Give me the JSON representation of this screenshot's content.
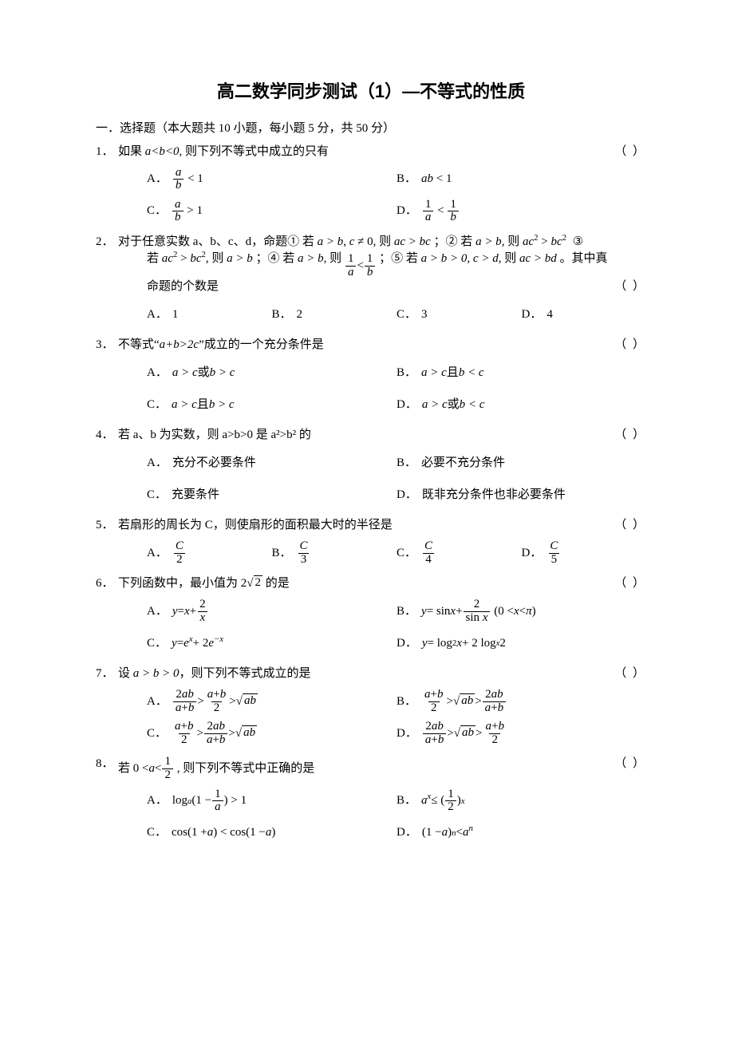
{
  "title": "高二数学同步测试（1）—不等式的性质",
  "section1": "一．选择题（本大题共 10 小题，每小题 5 分，共 50 分）",
  "blank": "（    ）",
  "labels": {
    "A": "A．",
    "B": "B．",
    "C": "C．",
    "D": "D．"
  },
  "q1": {
    "num": "1．",
    "text_before": "如果 ",
    "cond": "a<b<0",
    "text_after": ", 则下列不等式中成立的只有"
  },
  "q2": {
    "num": "2．",
    "text": "对于任意实数 a、b、c、d，",
    "stmt_tail": "。其中真",
    "tail2": "命题的个数是",
    "optA": "1",
    "optB": "2",
    "optC": "3",
    "optD": "4"
  },
  "q3": {
    "num": "3．",
    "text_before": "不等式“",
    "cond": "a+b>2c",
    "text_after": "”成立的一个充分条件是"
  },
  "q4": {
    "num": "4．",
    "text": "若 a、b 为实数，则 a>b>0 是 a²>b² 的",
    "optA": "充分不必要条件",
    "optB": "必要不充分条件",
    "optC": "充要条件",
    "optD": "既非充分条件也非必要条件"
  },
  "q5": {
    "num": "5．",
    "text": "若扇形的周长为 C，则使扇形的面积最大时的半径是"
  },
  "q6": {
    "num": "6．",
    "text_before": "下列函数中，最小值为 ",
    "text_after": " 的是"
  },
  "q7": {
    "num": "7．",
    "text": "，则下列不等式成立的是"
  },
  "q8": {
    "num": "8．",
    "text": " , 则下列不等式中正确的是"
  }
}
